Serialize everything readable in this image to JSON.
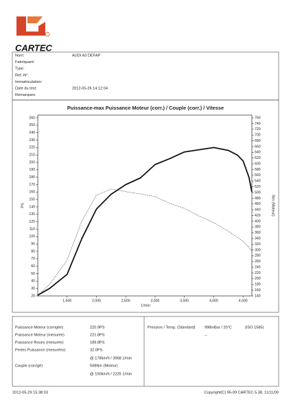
{
  "header": {
    "logo": "CARTEC"
  },
  "vehicle": {
    "rows": [
      [
        "Nom:",
        "AUDI A3 DEFAP"
      ],
      [
        "Fabriquant:"
      ],
      [
        "Type:"
      ],
      [
        "Ref.-N°:"
      ],
      [
        "Immatriculation:"
      ],
      [
        "Date du test:",
        "2012-05-26 14:12:04"
      ],
      [
        "Remarques:"
      ]
    ]
  },
  "chart_data": {
    "type": "line",
    "title": "Puissance-max Puissance Moteur (corr.) / Couple (corr.) / Vitesse",
    "x_label": "1/min",
    "y_label": "PS",
    "y2_label": "Nm (Moteur)",
    "x": [
      1000,
      1200,
      1500,
      1750,
      2000,
      2250,
      2500,
      2750,
      3000,
      3250,
      3500,
      3750,
      4000,
      4250,
      4400,
      4500,
      4600,
      4650
    ],
    "series": [
      {
        "color": "#111111",
        "style": "solid",
        "width": 1.8,
        "values": [
          21,
          30,
          49,
          97,
          137,
          157,
          170,
          179,
          197,
          205,
          214,
          217,
          220,
          216,
          210,
          202,
          180,
          160
        ]
      },
      {
        "color": "#333333",
        "style": "dashed",
        "width": 0.6,
        "axis": "y2",
        "values": [
          140,
          180,
          264,
          400,
          491,
          512,
          503,
          495,
          486,
          462,
          445,
          418,
          395,
          365,
          345,
          330,
          310,
          295
        ]
      }
    ],
    "xlim": [
      1000,
      4650
    ],
    "xticks": [
      {
        "value": 1500,
        "label": "1,500"
      },
      {
        "value": 2000,
        "label": "2,000"
      },
      {
        "value": 2500,
        "label": "2,500"
      },
      {
        "value": 3000,
        "label": "3,000"
      },
      {
        "value": 3500,
        "label": "3,500"
      },
      {
        "value": 4000,
        "label": "4,000"
      },
      {
        "value": 4500,
        "label": "4,500"
      }
    ],
    "ylim": [
      20,
      260
    ],
    "yticks": [
      20,
      30,
      40,
      50,
      60,
      70,
      80,
      90,
      100,
      110,
      120,
      130,
      140,
      150,
      160,
      170,
      180,
      190,
      200,
      210,
      220,
      230,
      240,
      250,
      260
    ],
    "y2lim": [
      140,
      760
    ],
    "y2ticks": [
      140,
      160,
      180,
      200,
      220,
      240,
      260,
      280,
      300,
      320,
      340,
      360,
      380,
      400,
      420,
      440,
      460,
      480,
      500,
      520,
      540,
      560,
      580,
      600,
      620,
      640,
      660,
      680,
      700,
      720,
      740,
      760
    ],
    "grid": false
  },
  "results": {
    "rows": [
      [
        "Puissance Moteur (corrigée)",
        "220.9PS"
      ],
      [
        "Puissance Moteur (mesurée)",
        "221.8PS"
      ],
      [
        "Puissance Roues (mesurée)",
        "189.8PS"
      ],
      [
        "Pertes Puissance (mesurées)",
        "32.0PS"
      ],
      [
        "@ 178km/h / 3968 1/min"
      ],
      [
        "Couple (corrigé)",
        "508Nm (Moteur)"
      ],
      [
        "@ 100km/h / 2225 1/min"
      ]
    ]
  },
  "conditions": {
    "label": "Pression / Temp. (Standard)",
    "value": "998mBar / 20°C",
    "standard": "(ISO 1585)",
    "extra": "--"
  },
  "footer": {
    "date": "2012-05-29 15:38:03",
    "copyright": "Copyright(C) 95-09 CARTEC 5.38, 11/11/09"
  }
}
